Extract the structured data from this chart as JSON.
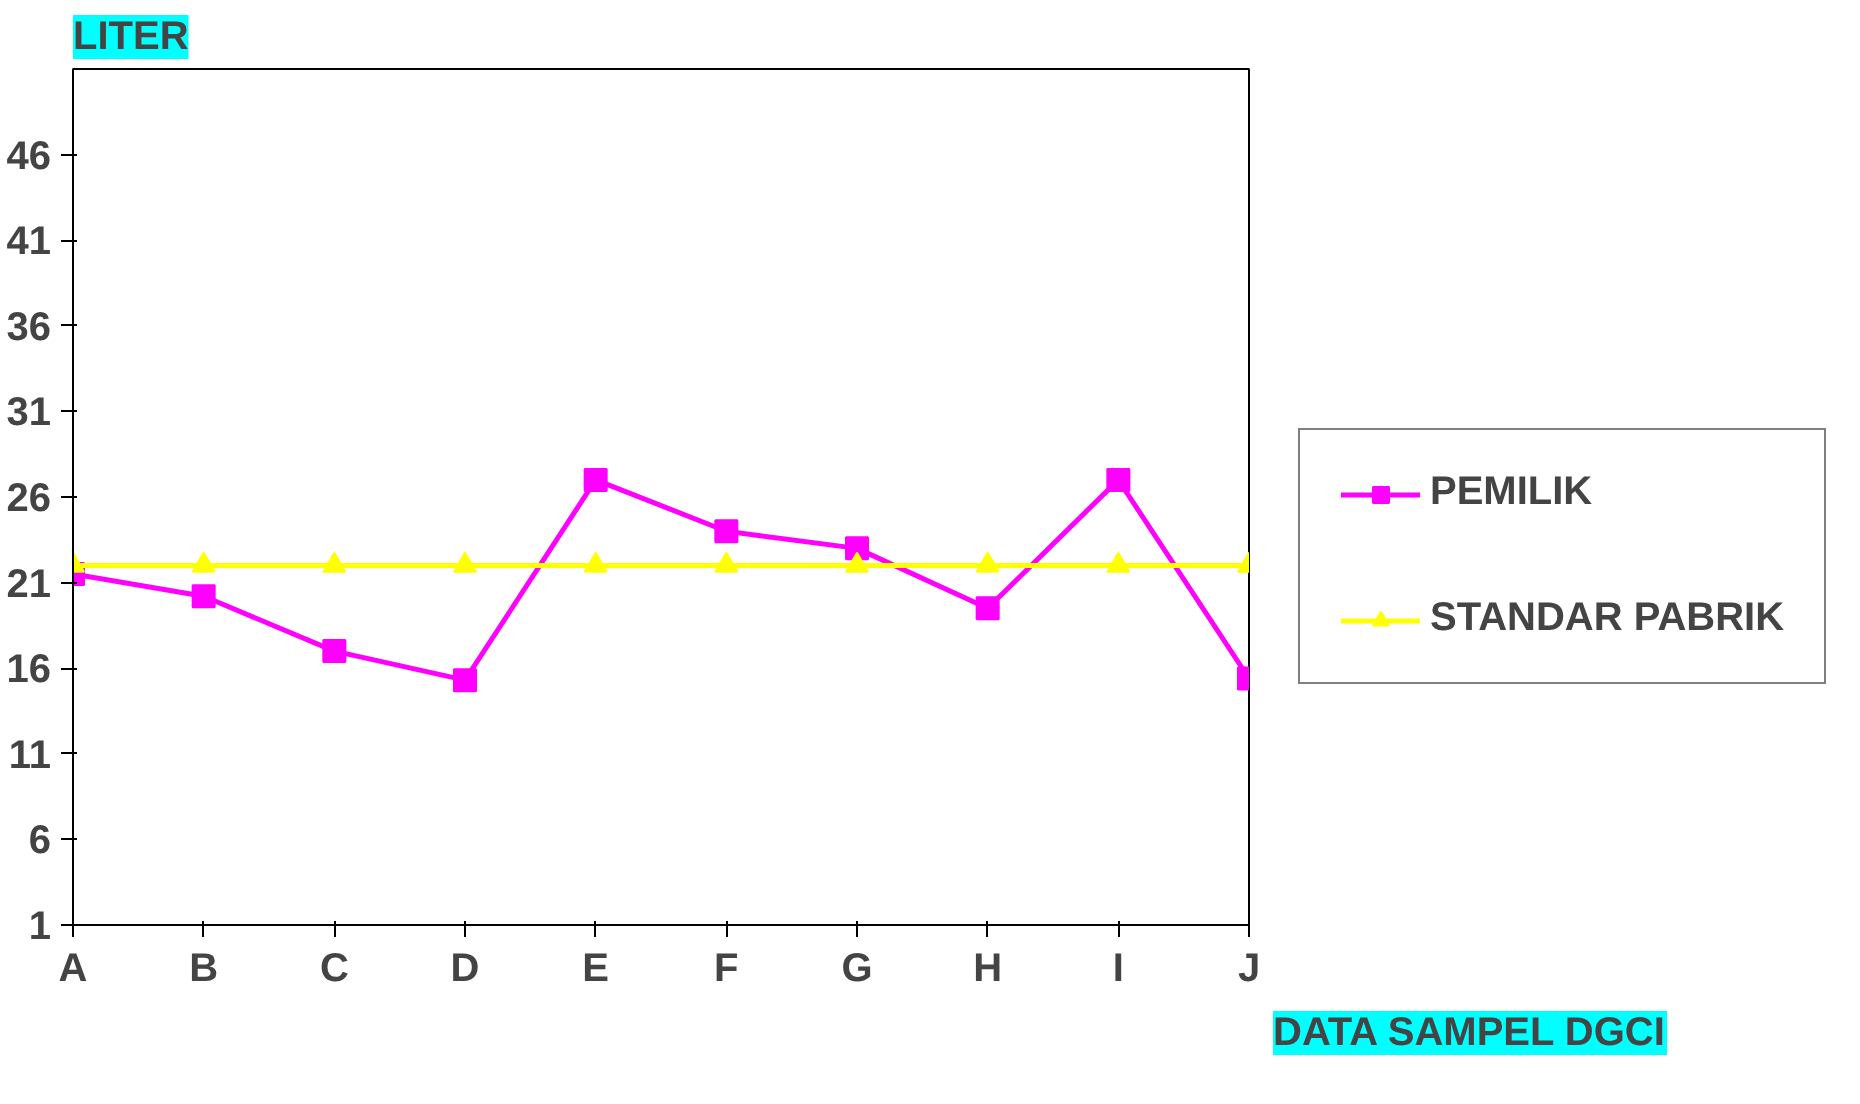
{
  "chart_data": {
    "type": "line",
    "xlabel": "DATA SAMPEL DGCI",
    "ylabel": "LITER",
    "categories": [
      "A",
      "B",
      "C",
      "D",
      "E",
      "F",
      "G",
      "H",
      "I",
      "J"
    ],
    "series": [
      {
        "name": "PEMILIK",
        "color": "#ff00ff",
        "marker": "square",
        "values": [
          21.5,
          20.2,
          17,
          15.3,
          27,
          24,
          23,
          19.5,
          27,
          15.4
        ]
      },
      {
        "name": "STANDAR PABRIK",
        "color": "#ffff00",
        "marker": "triangle",
        "values": [
          22,
          22,
          22,
          22,
          22,
          22,
          22,
          22,
          22,
          22
        ]
      }
    ],
    "ylim": [
      1,
      51
    ],
    "yticks": [
      1,
      6,
      11,
      16,
      21,
      26,
      31,
      36,
      41,
      46
    ],
    "grid": false,
    "legend": "right",
    "line_style": "solid"
  }
}
